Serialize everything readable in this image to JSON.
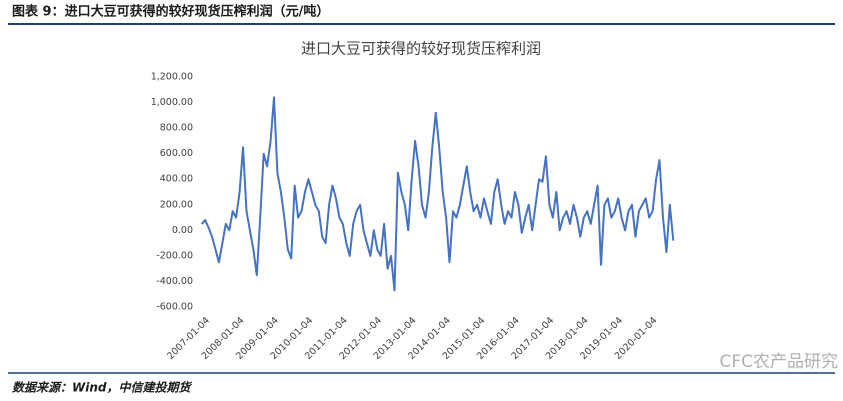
{
  "header": "图表 9：进口大豆可获得的较好现货压榨利润（元/吨）",
  "source": "数据来源：Wind，中信建投期货",
  "watermark": "CFC农产品研究",
  "chart_data": {
    "type": "line",
    "title": "进口大豆可获得的较好现货压榨利润",
    "xlim": [
      2006.85,
      2020.65
    ],
    "xticks": [
      {
        "value": 2007,
        "label": "2007-01-04"
      },
      {
        "value": 2008,
        "label": "2008-01-04"
      },
      {
        "value": 2009,
        "label": "2009-01-04"
      },
      {
        "value": 2010,
        "label": "2010-01-04"
      },
      {
        "value": 2011,
        "label": "2011-01-04"
      },
      {
        "value": 2012,
        "label": "2012-01-04"
      },
      {
        "value": 2013,
        "label": "2013-01-04"
      },
      {
        "value": 2014,
        "label": "2014-01-04"
      },
      {
        "value": 2015,
        "label": "2015-01-04"
      },
      {
        "value": 2016,
        "label": "2016-01-04"
      },
      {
        "value": 2017,
        "label": "2017-01-04"
      },
      {
        "value": 2018,
        "label": "2018-01-04"
      },
      {
        "value": 2019,
        "label": "2019-01-04"
      },
      {
        "value": 2020,
        "label": "2020-01-04"
      }
    ],
    "ylim": [
      -600,
      1200
    ],
    "yticks": [
      {
        "value": -600,
        "label": "-600.00"
      },
      {
        "value": -400,
        "label": "-400.00"
      },
      {
        "value": -200,
        "label": "-200.00"
      },
      {
        "value": 0,
        "label": "0.00"
      },
      {
        "value": 200,
        "label": "200.00"
      },
      {
        "value": 400,
        "label": "400.00"
      },
      {
        "value": 600,
        "label": "600.00"
      },
      {
        "value": 800,
        "label": "800.00"
      },
      {
        "value": 1000,
        "label": "1,000.00"
      },
      {
        "value": 1200,
        "label": "1,200.00"
      }
    ],
    "x": [
      2006.9,
      2007.0,
      2007.1,
      2007.2,
      2007.3,
      2007.4,
      2007.5,
      2007.6,
      2007.7,
      2007.8,
      2007.9,
      2008.0,
      2008.1,
      2008.2,
      2008.3,
      2008.4,
      2008.5,
      2008.6,
      2008.7,
      2008.8,
      2008.9,
      2009.0,
      2009.1,
      2009.2,
      2009.3,
      2009.4,
      2009.5,
      2009.6,
      2009.7,
      2009.8,
      2009.9,
      2010.0,
      2010.1,
      2010.2,
      2010.3,
      2010.4,
      2010.5,
      2010.6,
      2010.7,
      2010.8,
      2010.9,
      2011.0,
      2011.1,
      2011.2,
      2011.3,
      2011.4,
      2011.5,
      2011.6,
      2011.7,
      2011.8,
      2011.9,
      2012.0,
      2012.1,
      2012.2,
      2012.3,
      2012.4,
      2012.5,
      2012.6,
      2012.7,
      2012.8,
      2012.9,
      2013.0,
      2013.1,
      2013.2,
      2013.3,
      2013.4,
      2013.5,
      2013.6,
      2013.7,
      2013.8,
      2013.9,
      2014.0,
      2014.1,
      2014.2,
      2014.3,
      2014.4,
      2014.5,
      2014.6,
      2014.7,
      2014.8,
      2014.9,
      2015.0,
      2015.1,
      2015.2,
      2015.3,
      2015.4,
      2015.5,
      2015.6,
      2015.7,
      2015.8,
      2015.9,
      2016.0,
      2016.1,
      2016.2,
      2016.3,
      2016.4,
      2016.5,
      2016.6,
      2016.7,
      2016.8,
      2016.9,
      2017.0,
      2017.1,
      2017.2,
      2017.3,
      2017.4,
      2017.5,
      2017.6,
      2017.7,
      2017.8,
      2017.9,
      2018.0,
      2018.1,
      2018.2,
      2018.3,
      2018.4,
      2018.5,
      2018.6,
      2018.7,
      2018.8,
      2018.9,
      2019.0,
      2019.1,
      2019.2,
      2019.3,
      2019.4,
      2019.5,
      2019.6,
      2019.7,
      2019.8,
      2019.9,
      2020.0,
      2020.1,
      2020.2,
      2020.3,
      2020.4,
      2020.5,
      2020.6
    ],
    "series": [
      {
        "color": "#4472c4",
        "values": [
          50,
          80,
          20,
          -50,
          -150,
          -250,
          -100,
          50,
          0,
          150,
          100,
          300,
          650,
          150,
          0,
          -150,
          -350,
          100,
          600,
          500,
          700,
          1040,
          450,
          300,
          100,
          -150,
          -220,
          350,
          100,
          150,
          300,
          400,
          300,
          200,
          150,
          -50,
          -100,
          200,
          350,
          250,
          100,
          50,
          -100,
          -200,
          50,
          150,
          200,
          0,
          -100,
          -200,
          0,
          -150,
          -200,
          50,
          -300,
          -200,
          -470,
          450,
          300,
          200,
          0,
          400,
          700,
          500,
          200,
          100,
          300,
          650,
          920,
          650,
          300,
          100,
          -250,
          150,
          100,
          200,
          350,
          500,
          300,
          150,
          200,
          100,
          250,
          150,
          50,
          300,
          400,
          200,
          50,
          150,
          100,
          300,
          200,
          -20,
          100,
          200,
          0,
          200,
          400,
          380,
          580,
          200,
          100,
          300,
          0,
          100,
          150,
          50,
          200,
          100,
          -50,
          100,
          150,
          50,
          200,
          350,
          -270,
          200,
          250,
          100,
          150,
          250,
          100,
          0,
          150,
          200,
          -50,
          150,
          200,
          250,
          100,
          150,
          400,
          550,
          100,
          -170,
          200,
          -80
        ]
      }
    ]
  }
}
